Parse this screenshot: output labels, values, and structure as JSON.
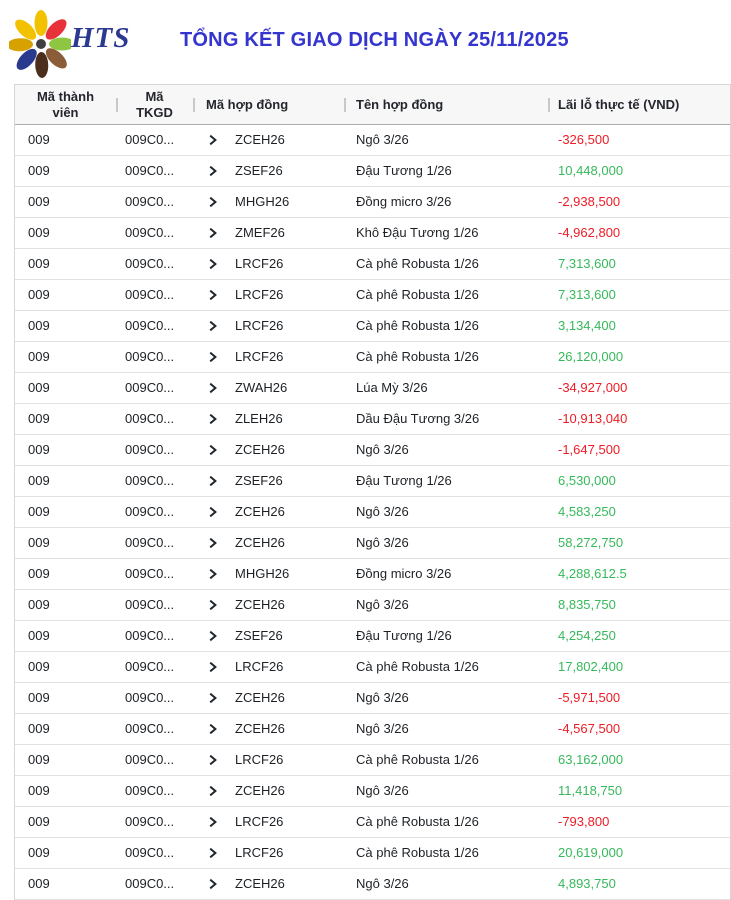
{
  "header": {
    "brand": "HTS",
    "title": "TỔNG KẾT GIAO DỊCH NGÀY 25/11/2025"
  },
  "colors": {
    "title": "#3434cf",
    "brand": "#2b3990",
    "positive": "#36b95a",
    "negative": "#ee1c25",
    "header_text": "#23262c",
    "row_text": "#1d2126",
    "logo_center": "#404040",
    "logo_petals": [
      "#f2c100",
      "#e63238",
      "#8fc641",
      "#8a5c38",
      "#4c2e1c",
      "#2a3a8e",
      "#d7a100",
      "#f2c100"
    ]
  },
  "icons": {
    "logo": "hts-pinwheel-logo",
    "row_expander": "chevron-right"
  },
  "table": {
    "columns": [
      "Mã thành viên",
      "Mã TKGD",
      "Mã hợp đồng",
      "Tên hợp đồng",
      "Lãi lỗ thực tế (VND)"
    ],
    "rows": [
      {
        "member": "009",
        "account": "009C0...",
        "contract_code": "ZCEH26",
        "contract_name": "Ngô 3/26",
        "pnl": "-326,500"
      },
      {
        "member": "009",
        "account": "009C0...",
        "contract_code": "ZSEF26",
        "contract_name": "Đậu Tương 1/26",
        "pnl": "10,448,000"
      },
      {
        "member": "009",
        "account": "009C0...",
        "contract_code": "MHGH26",
        "contract_name": "Đồng micro 3/26",
        "pnl": "-2,938,500"
      },
      {
        "member": "009",
        "account": "009C0...",
        "contract_code": "ZMEF26",
        "contract_name": "Khô Đậu Tương 1/26",
        "pnl": "-4,962,800"
      },
      {
        "member": "009",
        "account": "009C0...",
        "contract_code": "LRCF26",
        "contract_name": "Cà phê Robusta 1/26",
        "pnl": "7,313,600"
      },
      {
        "member": "009",
        "account": "009C0...",
        "contract_code": "LRCF26",
        "contract_name": "Cà phê Robusta 1/26",
        "pnl": "7,313,600"
      },
      {
        "member": "009",
        "account": "009C0...",
        "contract_code": "LRCF26",
        "contract_name": "Cà phê Robusta 1/26",
        "pnl": "3,134,400"
      },
      {
        "member": "009",
        "account": "009C0...",
        "contract_code": "LRCF26",
        "contract_name": "Cà phê Robusta 1/26",
        "pnl": "26,120,000"
      },
      {
        "member": "009",
        "account": "009C0...",
        "contract_code": "ZWAH26",
        "contract_name": "Lúa Mỳ 3/26",
        "pnl": "-34,927,000"
      },
      {
        "member": "009",
        "account": "009C0...",
        "contract_code": "ZLEH26",
        "contract_name": "Dầu Đậu Tương 3/26",
        "pnl": "-10,913,040"
      },
      {
        "member": "009",
        "account": "009C0...",
        "contract_code": "ZCEH26",
        "contract_name": "Ngô 3/26",
        "pnl": "-1,647,500"
      },
      {
        "member": "009",
        "account": "009C0...",
        "contract_code": "ZSEF26",
        "contract_name": "Đậu Tương 1/26",
        "pnl": "6,530,000"
      },
      {
        "member": "009",
        "account": "009C0...",
        "contract_code": "ZCEH26",
        "contract_name": "Ngô 3/26",
        "pnl": "4,583,250"
      },
      {
        "member": "009",
        "account": "009C0...",
        "contract_code": "ZCEH26",
        "contract_name": "Ngô 3/26",
        "pnl": "58,272,750"
      },
      {
        "member": "009",
        "account": "009C0...",
        "contract_code": "MHGH26",
        "contract_name": "Đồng micro 3/26",
        "pnl": "4,288,612.5"
      },
      {
        "member": "009",
        "account": "009C0...",
        "contract_code": "ZCEH26",
        "contract_name": "Ngô 3/26",
        "pnl": "8,835,750"
      },
      {
        "member": "009",
        "account": "009C0...",
        "contract_code": "ZSEF26",
        "contract_name": "Đậu Tương 1/26",
        "pnl": "4,254,250"
      },
      {
        "member": "009",
        "account": "009C0...",
        "contract_code": "LRCF26",
        "contract_name": "Cà phê Robusta 1/26",
        "pnl": "17,802,400"
      },
      {
        "member": "009",
        "account": "009C0...",
        "contract_code": "ZCEH26",
        "contract_name": "Ngô 3/26",
        "pnl": "-5,971,500"
      },
      {
        "member": "009",
        "account": "009C0...",
        "contract_code": "ZCEH26",
        "contract_name": "Ngô 3/26",
        "pnl": "-4,567,500"
      },
      {
        "member": "009",
        "account": "009C0...",
        "contract_code": "LRCF26",
        "contract_name": "Cà phê Robusta 1/26",
        "pnl": "63,162,000"
      },
      {
        "member": "009",
        "account": "009C0...",
        "contract_code": "ZCEH26",
        "contract_name": "Ngô 3/26",
        "pnl": "11,418,750"
      },
      {
        "member": "009",
        "account": "009C0...",
        "contract_code": "LRCF26",
        "contract_name": "Cà phê Robusta 1/26",
        "pnl": "-793,800"
      },
      {
        "member": "009",
        "account": "009C0...",
        "contract_code": "LRCF26",
        "contract_name": "Cà phê Robusta 1/26",
        "pnl": "20,619,000"
      },
      {
        "member": "009",
        "account": "009C0...",
        "contract_code": "ZCEH26",
        "contract_name": "Ngô 3/26",
        "pnl": "4,893,750"
      }
    ]
  }
}
